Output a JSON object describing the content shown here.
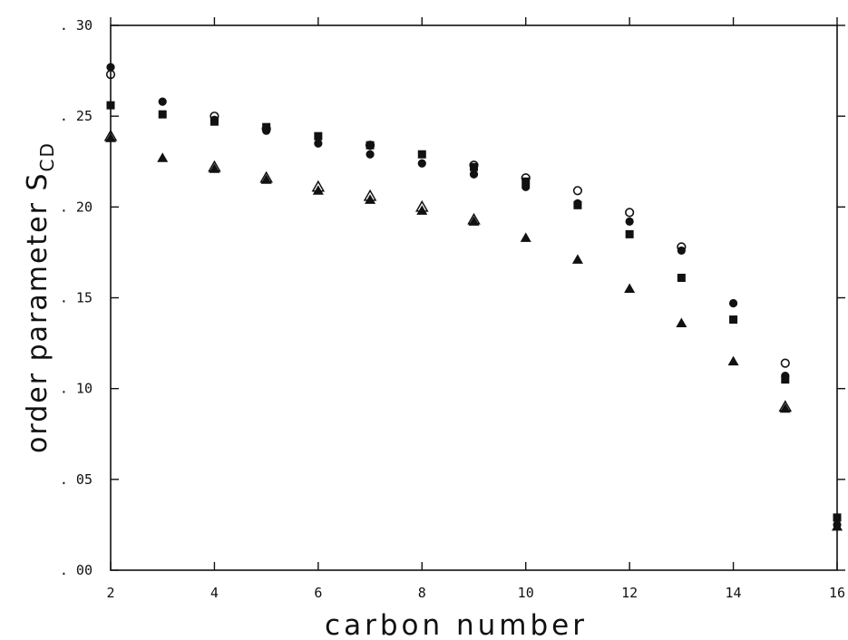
{
  "chart_data": {
    "type": "scatter",
    "xlabel": "carbon number",
    "ylabel": "order parameter S",
    "ylabel_subscript": "CD",
    "xlim": [
      2,
      16
    ],
    "ylim": [
      0,
      0.3
    ],
    "xticks": [
      2,
      4,
      6,
      8,
      10,
      12,
      14,
      16
    ],
    "xtick_labels": [
      "2",
      "4",
      "6",
      "8",
      "10",
      "12",
      "14",
      "16"
    ],
    "yticks": [
      0.0,
      0.05,
      0.1,
      0.15,
      0.2,
      0.25,
      0.3
    ],
    "ytick_labels": [
      ". 00",
      ". 05",
      ". 10",
      ". 15",
      ". 20",
      ". 25",
      ". 30"
    ],
    "grid": false,
    "series": [
      {
        "marker": "open-circle",
        "color": "#111111",
        "points": [
          [
            2,
            0.273
          ],
          [
            4,
            0.25
          ],
          [
            5,
            0.243
          ],
          [
            7,
            0.234
          ],
          [
            9,
            0.223
          ],
          [
            10,
            0.216
          ],
          [
            11,
            0.209
          ],
          [
            12,
            0.197
          ],
          [
            13,
            0.178
          ],
          [
            15,
            0.114
          ]
        ]
      },
      {
        "marker": "filled-circle",
        "color": "#111111",
        "points": [
          [
            2,
            0.277
          ],
          [
            3,
            0.258
          ],
          [
            4,
            0.248
          ],
          [
            5,
            0.242
          ],
          [
            6,
            0.235
          ],
          [
            7,
            0.229
          ],
          [
            8,
            0.224
          ],
          [
            9,
            0.218
          ],
          [
            10,
            0.211
          ],
          [
            11,
            0.202
          ],
          [
            12,
            0.192
          ],
          [
            13,
            0.176
          ],
          [
            14,
            0.147
          ],
          [
            15,
            0.107
          ],
          [
            16,
            0.025
          ]
        ]
      },
      {
        "marker": "filled-square",
        "color": "#111111",
        "points": [
          [
            2,
            0.256
          ],
          [
            3,
            0.251
          ],
          [
            4,
            0.247
          ],
          [
            5,
            0.244
          ],
          [
            6,
            0.239
          ],
          [
            7,
            0.234
          ],
          [
            8,
            0.229
          ],
          [
            9,
            0.222
          ],
          [
            10,
            0.214
          ],
          [
            11,
            0.201
          ],
          [
            12,
            0.185
          ],
          [
            13,
            0.161
          ],
          [
            14,
            0.138
          ],
          [
            15,
            0.105
          ],
          [
            16,
            0.029
          ]
        ]
      },
      {
        "marker": "open-triangle",
        "color": "#111111",
        "points": [
          [
            2,
            0.239
          ],
          [
            4,
            0.222
          ],
          [
            5,
            0.216
          ],
          [
            6,
            0.211
          ],
          [
            7,
            0.206
          ],
          [
            8,
            0.2
          ],
          [
            9,
            0.193
          ],
          [
            15,
            0.09
          ]
        ]
      },
      {
        "marker": "filled-triangle",
        "color": "#111111",
        "points": [
          [
            2,
            0.238
          ],
          [
            3,
            0.227
          ],
          [
            4,
            0.221
          ],
          [
            5,
            0.215
          ],
          [
            6,
            0.209
          ],
          [
            7,
            0.204
          ],
          [
            8,
            0.198
          ],
          [
            9,
            0.192
          ],
          [
            10,
            0.183
          ],
          [
            11,
            0.171
          ],
          [
            12,
            0.155
          ],
          [
            13,
            0.136
          ],
          [
            14,
            0.115
          ],
          [
            15,
            0.089
          ],
          [
            16,
            0.024
          ]
        ]
      }
    ]
  }
}
